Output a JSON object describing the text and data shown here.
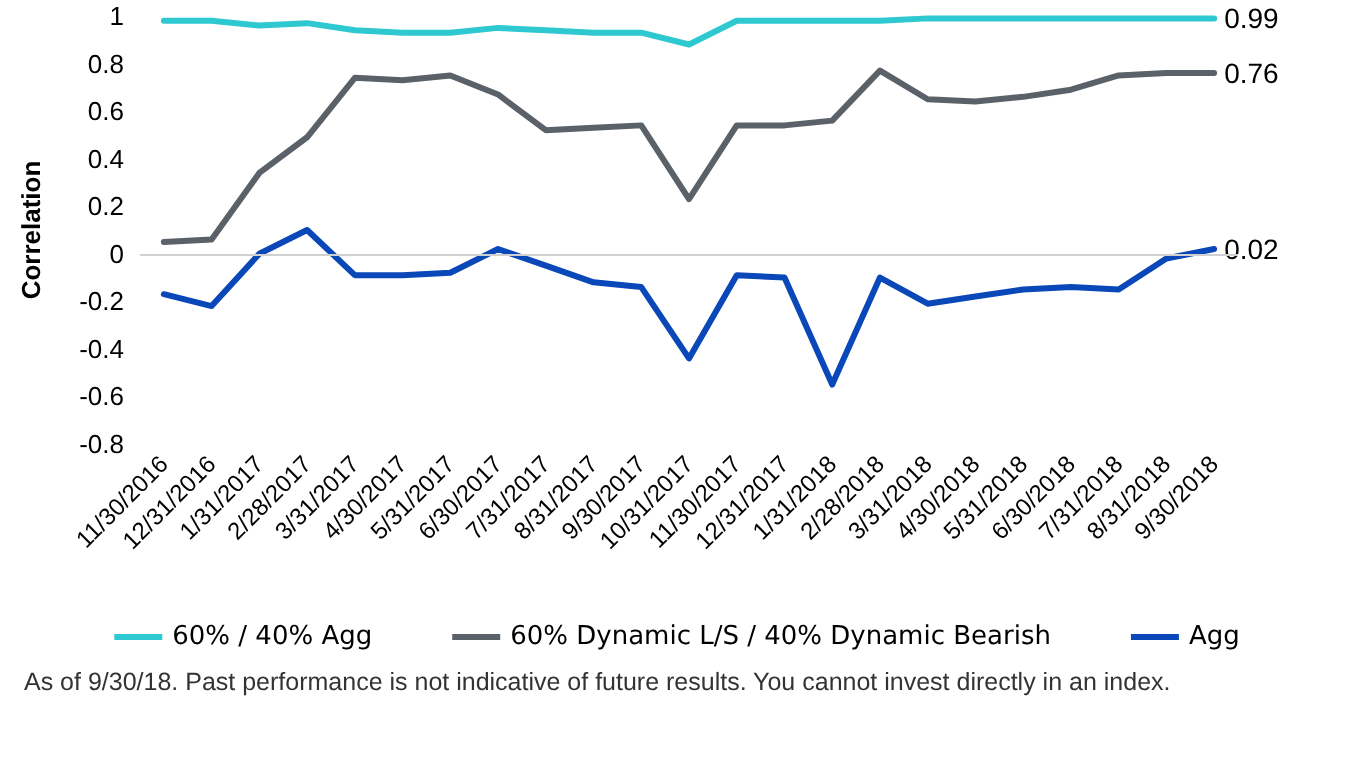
{
  "chart_data": {
    "type": "line",
    "ylabel": "Correlation",
    "categories": [
      "11/30/2016",
      "12/31/2016",
      "1/31/2017",
      "2/28/2017",
      "3/31/2017",
      "4/30/2017",
      "5/31/2017",
      "6/30/2017",
      "7/31/2017",
      "8/31/2017",
      "9/30/2017",
      "10/31/2017",
      "11/30/2017",
      "12/31/2017",
      "1/31/2018",
      "2/28/2018",
      "3/31/2018",
      "4/30/2018",
      "5/31/2018",
      "6/30/2018",
      "7/31/2018",
      "8/31/2018",
      "9/30/2018"
    ],
    "series": [
      {
        "name": "60% / 40% Agg",
        "color": "#2ec9d0",
        "values": [
          0.98,
          0.98,
          0.96,
          0.97,
          0.94,
          0.93,
          0.93,
          0.95,
          0.94,
          0.93,
          0.93,
          0.88,
          0.98,
          0.98,
          0.98,
          0.98,
          0.99,
          0.99,
          0.99,
          0.99,
          0.99,
          0.99,
          0.99
        ],
        "value_labels": [
          null,
          null,
          null,
          null,
          null,
          null,
          null,
          null,
          null,
          null,
          null,
          null,
          null,
          null,
          null,
          null,
          null,
          null,
          null,
          null,
          null,
          null,
          "0.99"
        ]
      },
      {
        "name": "60% Dynamic L/S / 40% Dynamic Bearish",
        "color": "#5a6168",
        "values": [
          0.05,
          0.06,
          0.34,
          0.49,
          0.74,
          0.73,
          0.75,
          0.67,
          0.52,
          0.53,
          0.54,
          0.23,
          0.54,
          0.54,
          0.56,
          0.77,
          0.65,
          0.64,
          0.66,
          0.69,
          0.75,
          0.76,
          0.76
        ],
        "value_labels": [
          null,
          null,
          null,
          null,
          null,
          null,
          null,
          null,
          null,
          null,
          null,
          null,
          null,
          null,
          null,
          null,
          null,
          null,
          null,
          null,
          null,
          null,
          "0.76"
        ]
      },
      {
        "name": "Agg",
        "color": "#0a47b8",
        "values": [
          -0.17,
          -0.22,
          0,
          0.1,
          -0.09,
          -0.09,
          -0.08,
          0.02,
          -0.05,
          -0.12,
          -0.14,
          -0.44,
          -0.09,
          -0.1,
          -0.55,
          -0.1,
          -0.21,
          -0.18,
          -0.15,
          -0.14,
          -0.15,
          -0.02,
          0.02
        ],
        "value_labels": [
          null,
          null,
          null,
          null,
          null,
          null,
          null,
          null,
          null,
          null,
          null,
          null,
          null,
          null,
          null,
          null,
          null,
          null,
          null,
          null,
          null,
          null,
          "0.02"
        ]
      }
    ],
    "ylim": [
      -0.8,
      1
    ],
    "yticks": [
      -0.8,
      -0.6,
      -0.4,
      -0.2,
      0,
      0.2,
      0.4,
      0.6,
      0.8,
      1
    ],
    "ref_lines": [
      {
        "axis": "y",
        "value": 0,
        "color": "#d0d0d0"
      }
    ],
    "grid": false,
    "legend": "bottom",
    "marker": "none",
    "line_style": "solid",
    "annotations": [
      "As of 9/30/18. Past performance is not indicative of future results. You cannot invest directly in an index."
    ]
  }
}
